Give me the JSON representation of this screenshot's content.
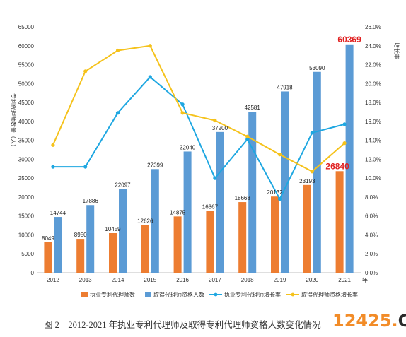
{
  "chart_data": {
    "type": "bar",
    "categories": [
      "2012",
      "2013",
      "2014",
      "2015",
      "2016",
      "2017",
      "2018",
      "2019",
      "2020",
      "2021"
    ],
    "xlabel_unit": "年",
    "ylabel": "专利代理师数量（人）",
    "ylabel2": "增长率",
    "ylim": [
      0,
      65000
    ],
    "ylim2": [
      0,
      26
    ],
    "yticks": [
      0,
      5000,
      10000,
      15000,
      20000,
      25000,
      30000,
      35000,
      40000,
      45000,
      50000,
      55000,
      60000,
      65000
    ],
    "yticks2": [
      "0.0%",
      "2.0%",
      "4.0%",
      "6.0%",
      "8.0%",
      "10.0%",
      "12.0%",
      "14.0%",
      "16.0%",
      "18.0%",
      "20.0%",
      "22.0%",
      "24.0%",
      "26.0%"
    ],
    "series": [
      {
        "name": "执业专利代理师数",
        "kind": "bar",
        "color": "#ed7d31",
        "values": [
          8049,
          8950,
          10459,
          12626,
          14875,
          16367,
          18668,
          20132,
          23193,
          26840
        ],
        "labels": [
          "8049",
          "8950",
          "10459",
          "12626",
          "14875",
          "16367",
          "18668",
          "20132",
          "23193",
          "26840"
        ]
      },
      {
        "name": "取得代理师资格人数",
        "kind": "bar",
        "color": "#5b9bd5",
        "values": [
          14744,
          17886,
          22097,
          27399,
          32040,
          37200,
          42581,
          47918,
          53090,
          60369
        ],
        "labels": [
          "14744",
          "17886",
          "22097",
          "27399",
          "32040",
          "37200",
          "42581",
          "47918",
          "53090",
          "60369"
        ]
      },
      {
        "name": "执业专利代理师增长率",
        "kind": "line",
        "axis": "right",
        "color": "#1ea7e1",
        "values": [
          11.2,
          11.2,
          16.9,
          20.7,
          17.8,
          10.0,
          14.1,
          7.8,
          14.8,
          15.7
        ]
      },
      {
        "name": "取得代理师资格增长率",
        "kind": "line",
        "axis": "right",
        "color": "#f5c21b",
        "values": [
          13.5,
          21.3,
          23.5,
          24.0,
          16.9,
          16.1,
          14.4,
          12.5,
          10.7,
          13.7
        ]
      }
    ],
    "highlight_labels": [
      "60369",
      "26840"
    ],
    "grid": false,
    "legend": "bottom"
  },
  "caption": "图 2　2012-2021 年执业专利代理师及取得专利代理师资格人数变化情况",
  "watermark": {
    "num": "12425",
    "dot": ".",
    "cn": "CN"
  }
}
